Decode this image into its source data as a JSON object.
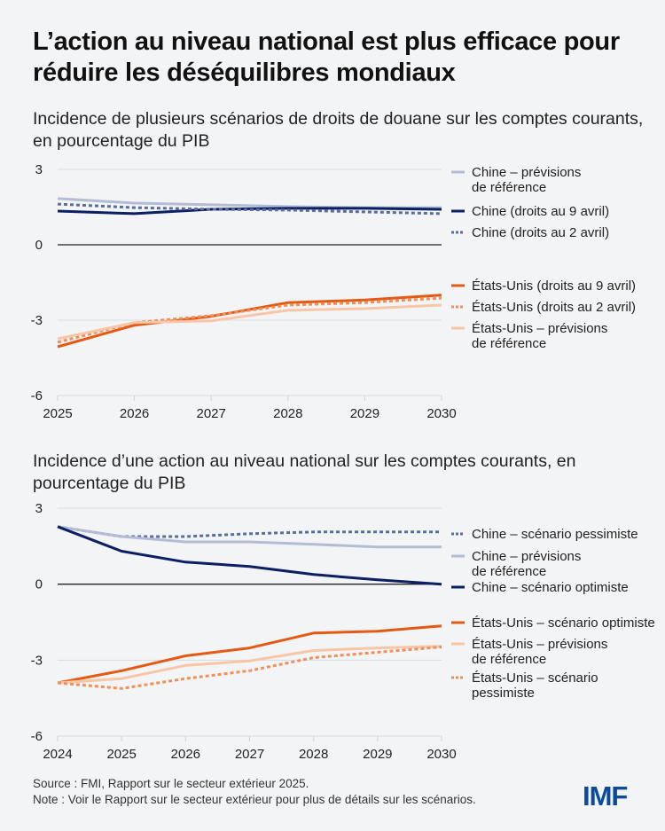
{
  "title": "L’action au niveau national est plus efficace pour réduire les déséquilibres mondiaux",
  "colors": {
    "china_ref": "#b3bcd4",
    "china_solid": "#0b1f63",
    "china_dash": "#5a6d9c",
    "us_solid": "#e45a12",
    "us_dash": "#ee8f5c",
    "us_ref": "#f8c6a7",
    "logo": "#0a4b9b"
  },
  "footer": {
    "source": "Source : FMI, Rapport sur le secteur extérieur 2025.",
    "note": "Note : Voir le Rapport sur le secteur extérieur pour plus de détails sur les scénarios."
  },
  "logo": "IMF",
  "chart_data": [
    {
      "type": "line",
      "title": "Incidence de plusieurs scénarios de droits de douane sur les comptes courants, en pourcentage du PIB",
      "xlabel": "",
      "ylabel": "",
      "x": [
        "2025",
        "2026",
        "2027",
        "2028",
        "2029",
        "2030"
      ],
      "ylim": [
        -6,
        3
      ],
      "yticks": [
        "3",
        "0",
        "-3",
        "-6"
      ],
      "grid": true,
      "legend_position": "right",
      "series": [
        {
          "name": "Chine – prévisions de référence",
          "legend": [
            "Chine – prévisions",
            "de référence"
          ],
          "color_key": "china_ref",
          "style": "solid",
          "values": [
            1.84,
            1.66,
            1.59,
            1.52,
            1.48,
            1.48
          ]
        },
        {
          "name": "Chine (droits au 9 avril)",
          "legend": [
            "Chine (droits au 9 avril)"
          ],
          "color_key": "china_solid",
          "style": "solid",
          "values": [
            1.34,
            1.24,
            1.41,
            1.45,
            1.45,
            1.41
          ]
        },
        {
          "name": "Chine (droits au 2 avril)",
          "legend": [
            "Chine (droits au 2 avril)"
          ],
          "color_key": "china_dash",
          "style": "dashed",
          "values": [
            1.62,
            1.48,
            1.41,
            1.38,
            1.31,
            1.24
          ]
        },
        {
          "name": "États-Unis (droits au 9 avril)",
          "legend": [
            "États-Unis (droits au 9 avril)"
          ],
          "color_key": "us_solid",
          "style": "solid",
          "values": [
            -4.06,
            -3.2,
            -2.85,
            -2.3,
            -2.2,
            -2.0
          ]
        },
        {
          "name": "États-Unis (droits au 2 avril)",
          "legend": [
            "États-Unis (droits au 2 avril)"
          ],
          "color_key": "us_dash",
          "style": "dashed",
          "values": [
            -3.88,
            -3.1,
            -2.82,
            -2.4,
            -2.3,
            -2.12
          ]
        },
        {
          "name": "États-Unis – prévisions de référence",
          "legend": [
            "États-Unis – prévisions",
            "de référence"
          ],
          "color_key": "us_ref",
          "style": "solid",
          "values": [
            -3.74,
            -3.1,
            -3.03,
            -2.61,
            -2.54,
            -2.4
          ]
        }
      ]
    },
    {
      "type": "line",
      "title": "Incidence d’une action au niveau national sur les comptes courants, en pourcentage du PIB",
      "xlabel": "",
      "ylabel": "",
      "x": [
        "2024",
        "2025",
        "2026",
        "2027",
        "2028",
        "2029",
        "2030"
      ],
      "ylim": [
        -6,
        3
      ],
      "yticks": [
        "3",
        "0",
        "-3",
        "-6"
      ],
      "grid": true,
      "legend_position": "right",
      "series": [
        {
          "name": "Chine – scénario pessimiste",
          "legend": [
            "Chine – scénario pessimiste"
          ],
          "color_key": "china_dash",
          "style": "dashed",
          "values": [
            2.27,
            1.88,
            1.88,
            1.99,
            2.06,
            2.06,
            2.06
          ]
        },
        {
          "name": "Chine – prévisions de référence",
          "legend": [
            "Chine – prévisions",
            "de référence"
          ],
          "color_key": "china_ref",
          "style": "solid",
          "values": [
            2.27,
            1.88,
            1.67,
            1.67,
            1.57,
            1.47,
            1.47
          ]
        },
        {
          "name": "Chine – scénario optimiste",
          "legend": [
            "Chine – scénario optimiste"
          ],
          "color_key": "china_solid",
          "style": "solid",
          "values": [
            2.27,
            1.3,
            0.87,
            0.7,
            0.38,
            0.17,
            0.0
          ]
        },
        {
          "name": "États-Unis – scénario optimiste",
          "legend": [
            "États-Unis – scénario optimiste"
          ],
          "color_key": "us_solid",
          "style": "solid",
          "values": [
            -3.9,
            -3.42,
            -2.83,
            -2.52,
            -1.93,
            -1.86,
            -1.65
          ]
        },
        {
          "name": "États-Unis – prévisions de référence",
          "legend": [
            "États-Unis – prévisions",
            "de référence"
          ],
          "color_key": "us_ref",
          "style": "solid",
          "values": [
            -3.9,
            -3.73,
            -3.21,
            -3.03,
            -2.62,
            -2.52,
            -2.45
          ]
        },
        {
          "name": "États-Unis – scénario pessimiste",
          "legend": [
            "États-Unis – scénario",
            "pessimiste"
          ],
          "color_key": "us_dash",
          "style": "dashed",
          "values": [
            -3.9,
            -4.12,
            -3.73,
            -3.42,
            -2.9,
            -2.69,
            -2.48
          ]
        }
      ]
    }
  ]
}
